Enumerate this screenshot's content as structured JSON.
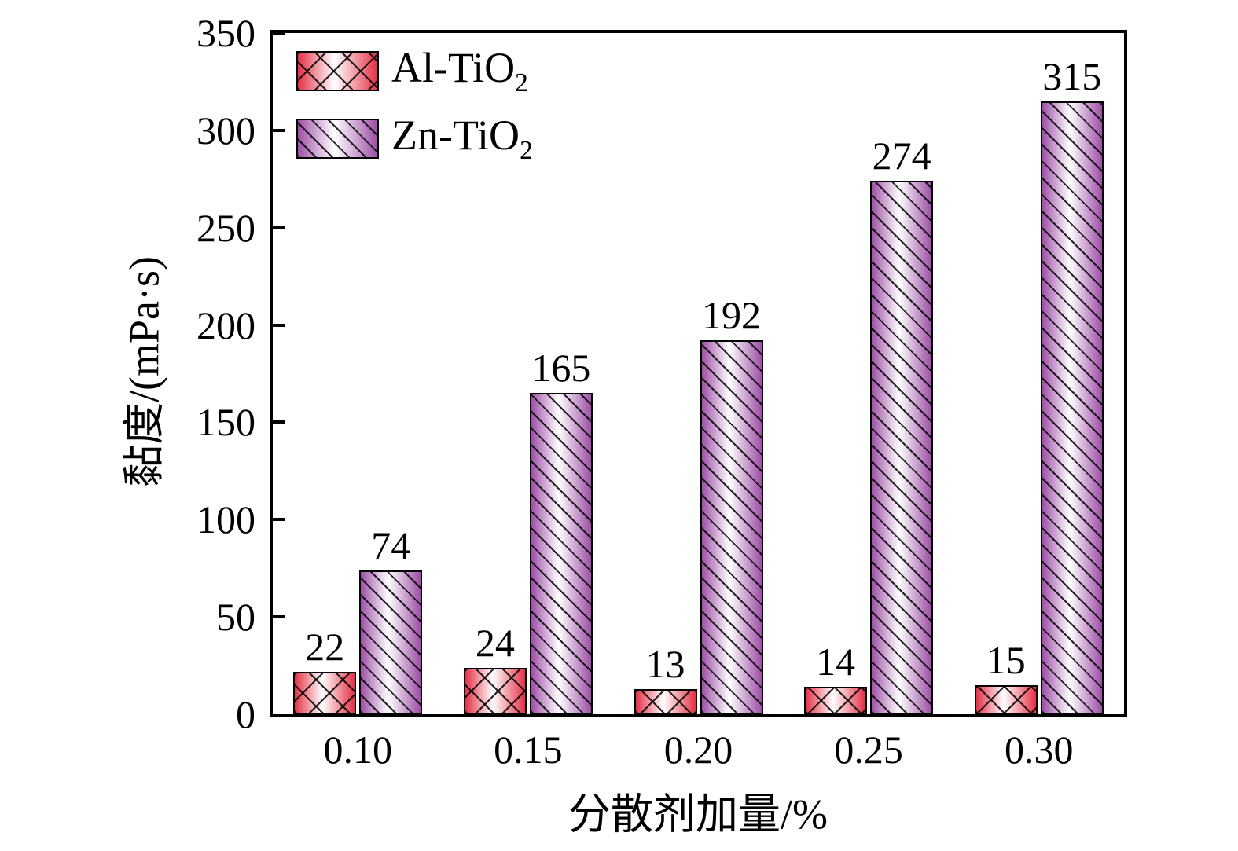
{
  "figure": {
    "background": "#ffffff",
    "axis_color": "#000000"
  },
  "legend": {
    "position": "top-left",
    "items": [
      {
        "base": "Al-TiO",
        "subscript": "2"
      },
      {
        "base": "Zn-TiO",
        "subscript": "2"
      }
    ]
  },
  "chart_data": {
    "type": "bar",
    "title": "",
    "xlabel": "分散剂加量/%",
    "ylabel": "黏度/(mPa·s)",
    "categories": [
      "0.10",
      "0.15",
      "0.20",
      "0.25",
      "0.30"
    ],
    "series": [
      {
        "name": "Al-TiO2",
        "values": [
          22,
          24,
          13,
          14,
          15
        ],
        "color": "#e43045",
        "pattern": "crosshatch"
      },
      {
        "name": "Zn-TiO2",
        "values": [
          74,
          165,
          192,
          274,
          315
        ],
        "color": "#9d4ea6",
        "pattern": "diagonal-lines"
      }
    ],
    "ylim": [
      0,
      350
    ],
    "yticks": [
      0,
      50,
      100,
      150,
      200,
      250,
      300,
      350
    ],
    "bar_value_labels": true,
    "grid": false,
    "legend_position": "top-left"
  }
}
